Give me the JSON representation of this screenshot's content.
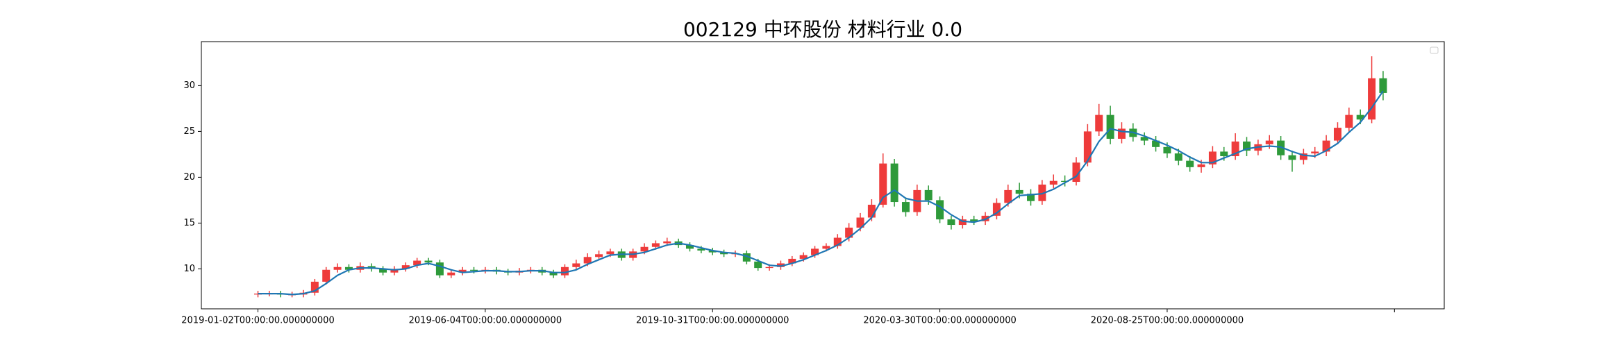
{
  "chart_data": {
    "type": "candlestick",
    "title": "002129 中环股份 材料行业 0.0",
    "x": [
      0,
      5,
      10,
      15,
      20,
      25,
      30,
      35,
      40,
      45,
      50,
      55,
      60,
      65,
      70,
      75,
      80,
      85,
      90,
      95,
      100,
      105,
      110,
      115,
      120,
      125,
      130,
      135,
      140,
      145,
      150,
      155,
      160,
      165,
      170,
      175,
      180,
      185,
      190,
      195,
      200,
      205,
      210,
      215,
      220,
      225,
      230,
      235,
      240,
      245,
      250,
      255,
      260,
      265,
      270,
      275,
      280,
      285,
      290,
      295,
      300,
      305,
      310,
      315,
      320,
      325,
      330,
      335,
      340,
      345,
      350,
      355,
      360,
      365,
      370,
      375,
      380,
      385,
      390,
      395,
      400,
      405,
      410,
      415,
      420,
      425,
      430,
      435,
      440,
      445,
      450,
      455,
      460,
      465,
      470,
      475,
      480,
      485,
      490,
      495
    ],
    "open": [
      7.2,
      7.3,
      7.3,
      7.2,
      7.2,
      7.4,
      8.6,
      9.9,
      10.2,
      9.9,
      10.3,
      10.0,
      9.6,
      10.0,
      10.4,
      10.9,
      10.7,
      9.3,
      9.6,
      9.9,
      9.8,
      9.9,
      9.7,
      9.6,
      9.8,
      9.9,
      9.6,
      9.3,
      10.2,
      10.6,
      11.3,
      11.6,
      11.9,
      11.2,
      11.9,
      12.4,
      12.8,
      13.0,
      12.6,
      12.2,
      12.0,
      11.8,
      11.6,
      11.7,
      10.8,
      10.1,
      10.2,
      10.6,
      11.1,
      11.5,
      12.2,
      12.5,
      13.4,
      14.5,
      15.6,
      17.0,
      21.5,
      17.3,
      16.2,
      18.6,
      17.5,
      15.4,
      14.8,
      15.4,
      15.2,
      15.8,
      17.2,
      18.6,
      18.2,
      17.4,
      19.2,
      19.6,
      19.5,
      21.6,
      25.0,
      26.8,
      24.2,
      25.3,
      24.4,
      24.0,
      23.3,
      22.6,
      21.8,
      21.1,
      21.4,
      22.8,
      22.3,
      23.9,
      22.9,
      23.6,
      24.0,
      22.4,
      21.9,
      22.6,
      22.8,
      24.0,
      25.4,
      26.8,
      26.3,
      30.8
    ],
    "high": [
      7.6,
      7.6,
      7.6,
      7.5,
      7.7,
      8.9,
      10.2,
      10.6,
      10.5,
      10.7,
      10.6,
      10.3,
      10.3,
      10.7,
      11.2,
      11.2,
      11.0,
      9.9,
      10.2,
      10.2,
      10.2,
      10.2,
      10.0,
      10.1,
      10.2,
      10.2,
      9.9,
      10.5,
      11.0,
      11.7,
      12.0,
      12.2,
      12.2,
      12.2,
      12.8,
      13.1,
      13.4,
      13.3,
      12.9,
      12.5,
      12.3,
      12.1,
      12.0,
      12.0,
      11.1,
      10.5,
      10.9,
      11.4,
      11.8,
      12.5,
      12.8,
      13.8,
      15.0,
      16.1,
      17.6,
      22.6,
      22.0,
      17.8,
      19.2,
      19.1,
      17.9,
      15.8,
      15.8,
      15.8,
      16.2,
      17.7,
      19.2,
      19.4,
      18.7,
      19.7,
      20.3,
      20.2,
      22.2,
      25.8,
      28.0,
      27.8,
      26.0,
      25.9,
      24.9,
      24.5,
      23.8,
      23.1,
      22.3,
      21.9,
      23.4,
      23.3,
      24.8,
      24.4,
      24.1,
      24.6,
      24.5,
      22.9,
      23.1,
      23.3,
      24.6,
      26.0,
      27.6,
      27.4,
      33.2,
      31.6
    ],
    "low": [
      6.9,
      7.0,
      6.9,
      6.9,
      6.9,
      7.1,
      8.3,
      9.6,
      9.6,
      9.6,
      9.7,
      9.3,
      9.3,
      9.7,
      10.1,
      10.4,
      9.0,
      9.0,
      9.3,
      9.5,
      9.5,
      9.4,
      9.3,
      9.3,
      9.5,
      9.3,
      9.0,
      9.0,
      9.9,
      10.3,
      11.0,
      11.3,
      10.9,
      10.9,
      11.6,
      12.1,
      12.5,
      12.3,
      11.9,
      11.7,
      11.5,
      11.3,
      11.3,
      10.5,
      9.8,
      9.8,
      9.9,
      10.3,
      10.8,
      11.2,
      11.9,
      12.2,
      13.0,
      14.1,
      15.2,
      16.7,
      16.8,
      15.7,
      15.8,
      17.0,
      15.0,
      14.3,
      14.4,
      14.8,
      14.8,
      15.4,
      16.8,
      17.7,
      16.9,
      17.0,
      18.8,
      19.0,
      19.1,
      21.2,
      24.5,
      23.6,
      23.7,
      23.9,
      23.5,
      22.8,
      22.1,
      21.3,
      20.6,
      20.5,
      21.0,
      21.8,
      21.9,
      22.3,
      22.4,
      23.1,
      21.9,
      20.6,
      21.4,
      22.1,
      22.3,
      23.6,
      24.9,
      25.8,
      25.9,
      28.4
    ],
    "close": [
      7.3,
      7.3,
      7.2,
      7.2,
      7.4,
      8.6,
      9.9,
      10.2,
      9.9,
      10.3,
      10.0,
      9.6,
      10.0,
      10.4,
      10.9,
      10.7,
      9.3,
      9.6,
      9.9,
      9.8,
      9.9,
      9.7,
      9.6,
      9.8,
      9.9,
      9.6,
      9.3,
      10.2,
      10.6,
      11.3,
      11.6,
      11.9,
      11.2,
      11.9,
      12.4,
      12.8,
      13.0,
      12.6,
      12.2,
      12.0,
      11.8,
      11.6,
      11.7,
      10.8,
      10.1,
      10.2,
      10.6,
      11.1,
      11.5,
      12.2,
      12.5,
      13.4,
      14.5,
      15.6,
      17.0,
      21.5,
      17.3,
      16.2,
      18.6,
      17.5,
      15.4,
      14.8,
      15.4,
      15.2,
      15.8,
      17.2,
      18.6,
      18.2,
      17.4,
      19.2,
      19.6,
      19.5,
      21.6,
      25.0,
      26.8,
      24.2,
      25.3,
      24.4,
      24.0,
      23.3,
      22.6,
      21.8,
      21.1,
      21.4,
      22.8,
      22.3,
      23.9,
      22.9,
      23.6,
      24.0,
      22.4,
      21.9,
      22.6,
      22.8,
      24.0,
      25.4,
      26.8,
      26.3,
      30.8,
      29.2
    ],
    "up_color": "#ee3b3b",
    "down_color": "#2e9a3a",
    "ma": {
      "color": "#1f77b4",
      "values": [
        7.3,
        7.3,
        7.3,
        7.2,
        7.3,
        7.6,
        8.4,
        9.3,
        9.9,
        10.1,
        10.1,
        10.0,
        9.9,
        10.0,
        10.4,
        10.6,
        10.3,
        9.9,
        9.6,
        9.7,
        9.8,
        9.8,
        9.7,
        9.7,
        9.8,
        9.8,
        9.6,
        9.6,
        9.9,
        10.5,
        11.0,
        11.5,
        11.6,
        11.6,
        11.8,
        12.2,
        12.6,
        12.8,
        12.6,
        12.3,
        12.0,
        11.8,
        11.7,
        11.4,
        10.9,
        10.4,
        10.3,
        10.6,
        11.0,
        11.5,
        12.0,
        12.6,
        13.4,
        14.4,
        15.6,
        17.8,
        18.6,
        17.7,
        17.4,
        17.4,
        16.8,
        15.9,
        15.2,
        15.1,
        15.4,
        16.1,
        17.1,
        18.0,
        18.1,
        18.2,
        18.7,
        19.4,
        20.1,
        21.8,
        23.9,
        25.3,
        25.0,
        24.9,
        24.5,
        24.0,
        23.5,
        22.9,
        22.2,
        21.6,
        21.6,
        22.1,
        22.6,
        23.1,
        23.3,
        23.4,
        23.3,
        22.8,
        22.4,
        22.3,
        22.9,
        23.7,
        24.9,
        26.0,
        27.6,
        29.4
      ]
    },
    "xlim": [
      -24.9,
      521.9
    ],
    "ylim": [
      5.64,
      34.8
    ],
    "xticks": [
      {
        "value": 0,
        "label": "2019-01-02T00:00:00.000000000"
      },
      {
        "value": 100,
        "label": "2019-06-04T00:00:00.000000000"
      },
      {
        "value": 200,
        "label": "2019-10-31T00:00:00.000000000"
      },
      {
        "value": 300,
        "label": "2020-03-30T00:00:00.000000000"
      },
      {
        "value": 400,
        "label": "2020-08-25T00:00:00.000000000"
      },
      {
        "value": 500,
        "label": null
      }
    ],
    "yticks": [
      10,
      15,
      20,
      25,
      30
    ],
    "legend": "upper right"
  }
}
